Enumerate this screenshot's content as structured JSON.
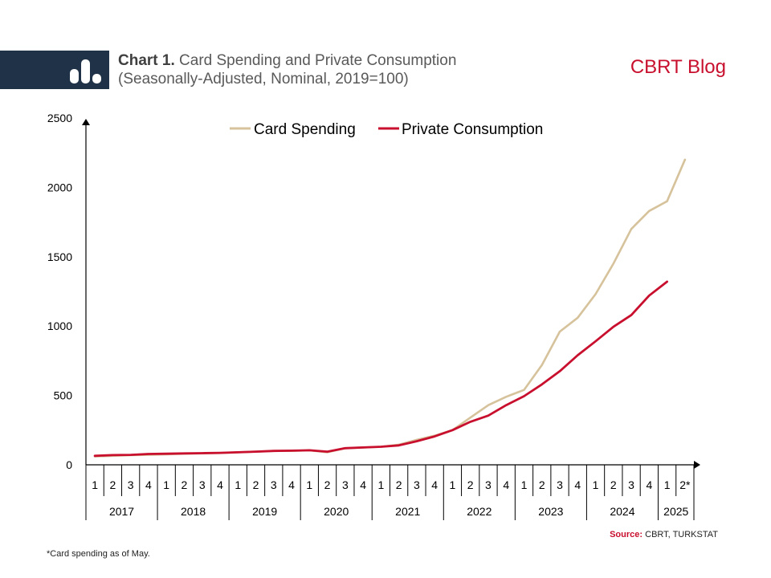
{
  "header": {
    "chart_number": "Chart 1.",
    "title": "Card Spending and Private Consumption",
    "subtitle": "(Seasonally-Adjusted, Nominal, 2019=100)",
    "brand": "CBRT Blog"
  },
  "footnote": "*Card spending as of May.",
  "source": {
    "label": "Source:",
    "text": "CBRT, TURKSTAT"
  },
  "colors": {
    "card_spending": "#d6c29b",
    "private_consumption": "#c8102e",
    "header_band": "#1f3247",
    "brand": "#c8102e"
  },
  "chart_data": {
    "type": "line",
    "title": "Card Spending and Private Consumption",
    "subtitle": "(Seasonally-Adjusted, Nominal, 2019=100)",
    "quarter_labels": [
      "1",
      "2",
      "3",
      "4",
      "1",
      "2",
      "3",
      "4",
      "1",
      "2",
      "3",
      "4",
      "1",
      "2",
      "3",
      "4",
      "1",
      "2",
      "3",
      "4",
      "1",
      "2",
      "3",
      "4",
      "1",
      "2",
      "3",
      "4",
      "1",
      "2",
      "3",
      "4",
      "1",
      "2*"
    ],
    "year_groups": [
      {
        "year": "2017",
        "quarters": 4
      },
      {
        "year": "2018",
        "quarters": 4
      },
      {
        "year": "2019",
        "quarters": 4
      },
      {
        "year": "2020",
        "quarters": 4
      },
      {
        "year": "2021",
        "quarters": 4
      },
      {
        "year": "2022",
        "quarters": 4
      },
      {
        "year": "2023",
        "quarters": 4
      },
      {
        "year": "2024",
        "quarters": 4
      },
      {
        "year": "2025",
        "quarters": 2
      }
    ],
    "y_ticks": [
      0,
      500,
      1000,
      1500,
      2000,
      2500
    ],
    "ylim": [
      0,
      2500
    ],
    "legend_position": "top",
    "grid": false,
    "series": [
      {
        "name": "Card Spending",
        "values": [
          60,
          65,
          70,
          72,
          75,
          80,
          82,
          85,
          90,
          95,
          100,
          100,
          105,
          90,
          120,
          125,
          130,
          145,
          180,
          210,
          250,
          340,
          430,
          490,
          540,
          720,
          960,
          1060,
          1230,
          1450,
          1700,
          1830,
          1900,
          2200
        ]
      },
      {
        "name": "Private Consumption",
        "values": [
          65,
          70,
          72,
          78,
          80,
          82,
          84,
          86,
          90,
          95,
          100,
          102,
          105,
          95,
          120,
          125,
          130,
          140,
          170,
          205,
          250,
          310,
          355,
          430,
          495,
          580,
          675,
          790,
          890,
          995,
          1080,
          1220,
          1320,
          null
        ]
      }
    ]
  }
}
